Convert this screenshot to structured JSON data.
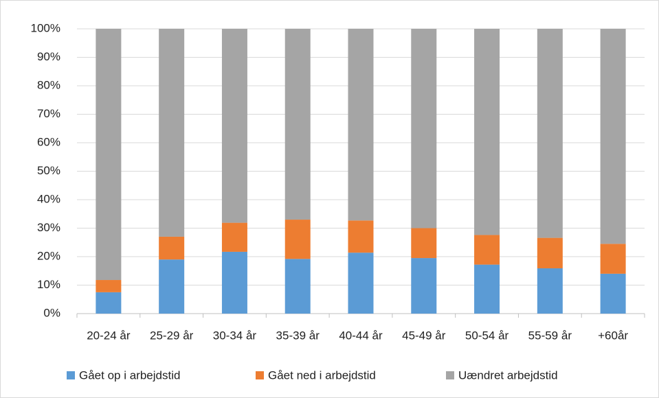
{
  "chart_data": {
    "type": "stacked_bar_percent",
    "categories": [
      "20-24 år",
      "25-29 år",
      "30-34 år",
      "35-39 år",
      "40-44 år",
      "45-49 år",
      "50-54 år",
      "55-59 år",
      "+60år"
    ],
    "series": [
      {
        "name": "Gået op i arbejdstid",
        "color": "#5b9bd5",
        "values": [
          7.5,
          19,
          21.7,
          19.2,
          21.4,
          19.5,
          17.2,
          15.9,
          14
        ]
      },
      {
        "name": "Gået ned i arbejdstid",
        "color": "#ed7d31",
        "values": [
          4.3,
          8,
          10.2,
          13.8,
          11.3,
          10.5,
          10.4,
          10.7,
          10.5
        ]
      },
      {
        "name": "Uændret arbejdstid",
        "color": "#a5a5a5",
        "values": [
          88.2,
          73,
          68.1,
          67,
          67.3,
          70,
          72.4,
          73.4,
          75.5
        ]
      }
    ],
    "ylim": [
      0,
      100
    ],
    "yticks": [
      {
        "value": 0,
        "label": "0%"
      },
      {
        "value": 10,
        "label": "10%"
      },
      {
        "value": 20,
        "label": "20%"
      },
      {
        "value": 30,
        "label": "30%"
      },
      {
        "value": 40,
        "label": "40%"
      },
      {
        "value": 50,
        "label": "50%"
      },
      {
        "value": 60,
        "label": "60%"
      },
      {
        "value": 70,
        "label": "70%"
      },
      {
        "value": 80,
        "label": "80%"
      },
      {
        "value": 90,
        "label": "90%"
      },
      {
        "value": 100,
        "label": "100%"
      }
    ],
    "grid": true,
    "legend": "bottom"
  }
}
